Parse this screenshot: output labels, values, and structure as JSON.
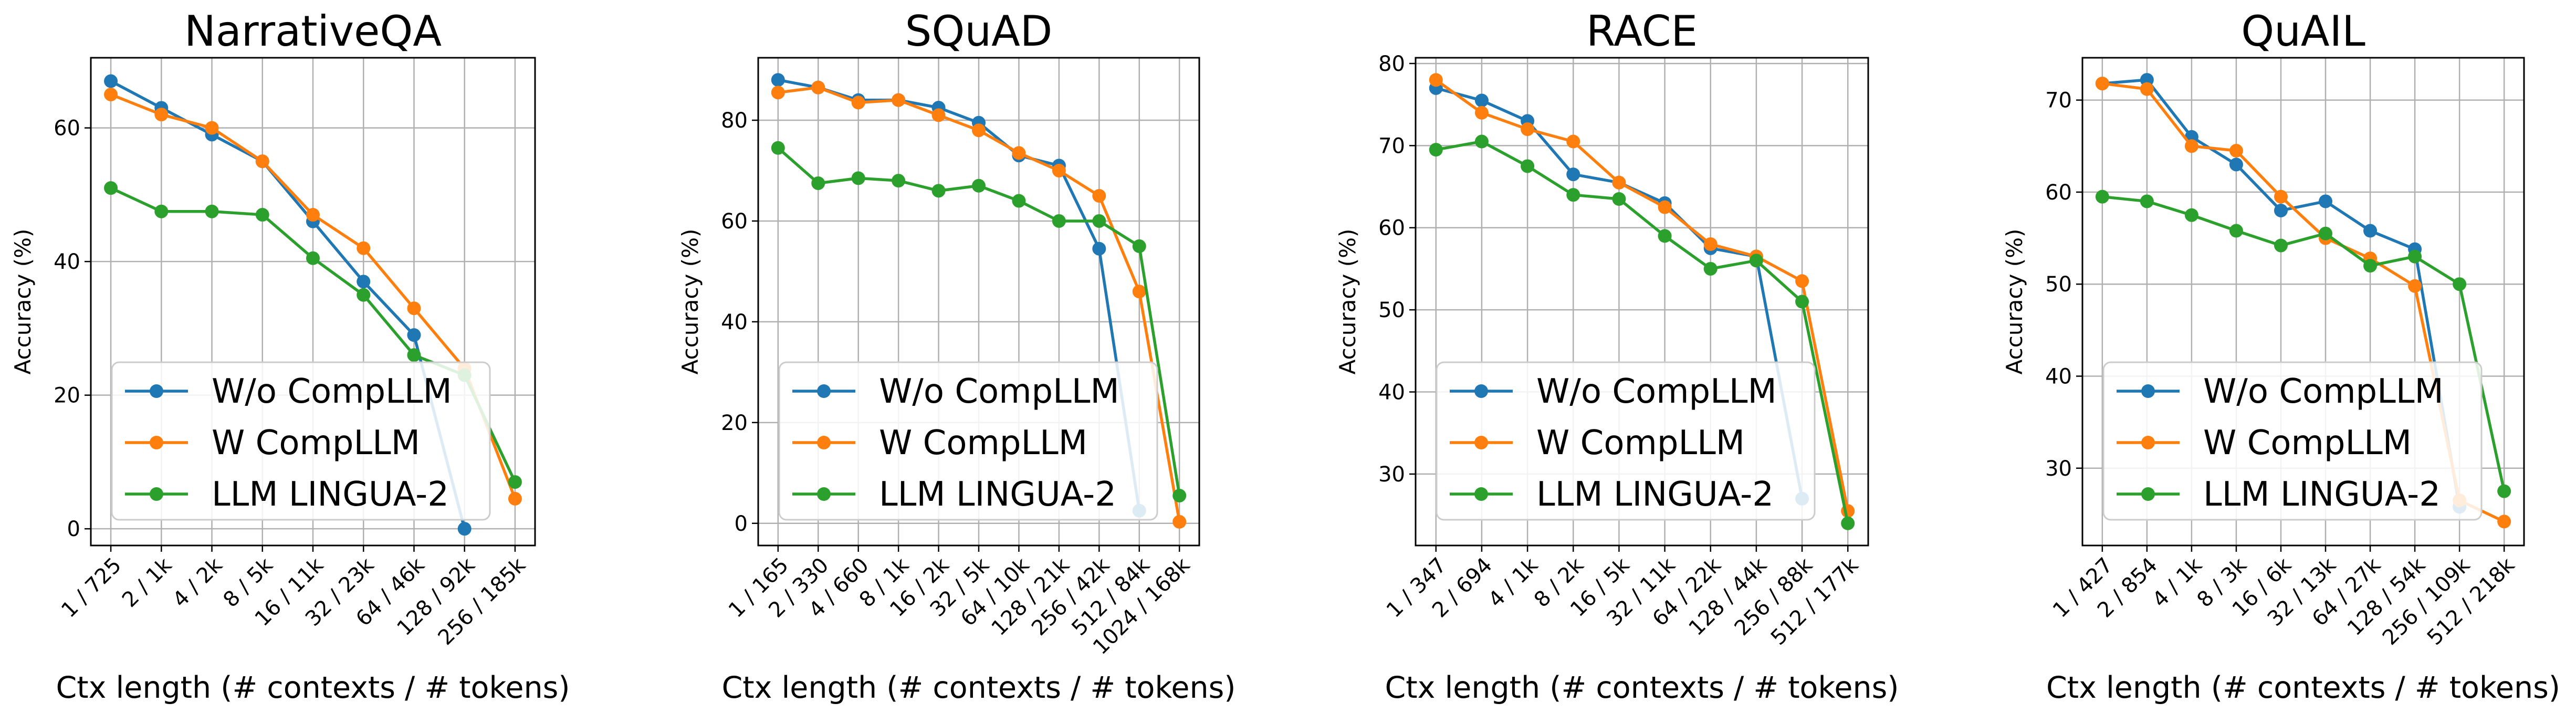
{
  "chart_data": [
    {
      "type": "line",
      "title": "NarrativeQA",
      "xlabel": "Ctx length (# contexts / # tokens)",
      "ylabel": "Accuracy (%)",
      "categories": [
        "1 / 725",
        "2 / 1k",
        "4 / 2k",
        "8 / 5k",
        "16 / 11k",
        "32 / 23k",
        "64 / 46k",
        "128 / 92k",
        "256 / 185k"
      ],
      "ylim": [
        -2.5,
        70.5
      ],
      "yticks": [
        0,
        20,
        40,
        60
      ],
      "grid": true,
      "legend": "lower-left",
      "series": [
        {
          "name": "W/o CompLLM",
          "color": "#1f77b4",
          "values": [
            67.0,
            63.0,
            59.0,
            55.0,
            46.0,
            37.0,
            29.0,
            0.0,
            null
          ]
        },
        {
          "name": "W CompLLM",
          "color": "#ff7f0e",
          "values": [
            65.0,
            62.0,
            60.0,
            55.0,
            47.0,
            42.0,
            33.0,
            24.0,
            4.5
          ]
        },
        {
          "name": "LLM LINGUA-2",
          "color": "#2ca02c",
          "values": [
            51.0,
            47.5,
            47.5,
            47.0,
            40.5,
            35.0,
            26.0,
            23.0,
            7.0
          ]
        }
      ]
    },
    {
      "type": "line",
      "title": "SQuAD",
      "xlabel": "Ctx length (# contexts / # tokens)",
      "ylabel": "Accuracy (%)",
      "categories": [
        "1 / 165",
        "2 / 330",
        "4 / 660",
        "8 / 1k",
        "16 / 2k",
        "32 / 5k",
        "64 / 10k",
        "128 / 21k",
        "256 / 42k",
        "512 / 84k",
        "1024 / 168k"
      ],
      "ylim": [
        -4.4,
        92.4
      ],
      "yticks": [
        0,
        20,
        40,
        60,
        80
      ],
      "grid": true,
      "legend": "lower-left",
      "series": [
        {
          "name": "W/o CompLLM",
          "color": "#1f77b4",
          "values": [
            88.0,
            86.5,
            84.0,
            84.0,
            82.5,
            79.5,
            73.0,
            71.0,
            54.5,
            2.5,
            null
          ]
        },
        {
          "name": "W CompLLM",
          "color": "#ff7f0e",
          "values": [
            85.5,
            86.5,
            83.5,
            84.0,
            81.0,
            78.0,
            73.5,
            70.0,
            65.0,
            46.0,
            0.3
          ]
        },
        {
          "name": "LLM LINGUA-2",
          "color": "#2ca02c",
          "values": [
            74.5,
            67.5,
            68.5,
            68.0,
            66.0,
            67.0,
            64.0,
            60.0,
            60.0,
            55.0,
            5.5
          ]
        }
      ]
    },
    {
      "type": "line",
      "title": "RACE",
      "xlabel": "Ctx length (# contexts / # tokens)",
      "ylabel": "Accuracy (%)",
      "categories": [
        "1 / 347",
        "2 / 694",
        "4 / 1k",
        "8 / 2k",
        "16 / 5k",
        "32 / 11k",
        "64 / 22k",
        "128 / 44k",
        "256 / 88k",
        "512 / 177k"
      ],
      "ylim": [
        21.3,
        80.7
      ],
      "yticks": [
        30,
        40,
        50,
        60,
        70,
        80
      ],
      "grid": true,
      "legend": "lower-left",
      "series": [
        {
          "name": "W/o CompLLM",
          "color": "#1f77b4",
          "values": [
            77.0,
            75.5,
            73.0,
            66.5,
            65.5,
            63.0,
            57.5,
            56.5,
            27.0,
            null
          ]
        },
        {
          "name": "W CompLLM",
          "color": "#ff7f0e",
          "values": [
            78.0,
            74.0,
            72.0,
            70.5,
            65.5,
            62.5,
            58.0,
            56.5,
            53.5,
            25.5
          ]
        },
        {
          "name": "LLM LINGUA-2",
          "color": "#2ca02c",
          "values": [
            69.5,
            70.5,
            67.5,
            64.0,
            63.5,
            59.0,
            55.0,
            56.0,
            51.0,
            24.0
          ]
        }
      ]
    },
    {
      "type": "line",
      "title": "QuAIL",
      "xlabel": "Ctx length (# contexts / # tokens)",
      "ylabel": "Accuracy (%)",
      "categories": [
        "1 / 427",
        "2 / 854",
        "4 / 1k",
        "8 / 3k",
        "16 / 6k",
        "32 / 13k",
        "64 / 27k",
        "128 / 54k",
        "256 / 109k",
        "512 / 218k"
      ],
      "ylim": [
        21.6,
        74.6
      ],
      "yticks": [
        30,
        40,
        50,
        60,
        70
      ],
      "grid": true,
      "legend": "lower-left",
      "series": [
        {
          "name": "W/o CompLLM",
          "color": "#1f77b4",
          "values": [
            71.8,
            72.2,
            66.0,
            63.0,
            58.0,
            59.0,
            55.8,
            53.8,
            25.8,
            null
          ]
        },
        {
          "name": "W CompLLM",
          "color": "#ff7f0e",
          "values": [
            71.8,
            71.2,
            65.0,
            64.5,
            59.5,
            55.0,
            52.8,
            49.8,
            26.5,
            24.2
          ]
        },
        {
          "name": "LLM LINGUA-2",
          "color": "#2ca02c",
          "values": [
            59.5,
            59.0,
            57.5,
            55.8,
            54.2,
            55.5,
            52.0,
            53.0,
            50.0,
            27.5
          ]
        }
      ]
    }
  ]
}
